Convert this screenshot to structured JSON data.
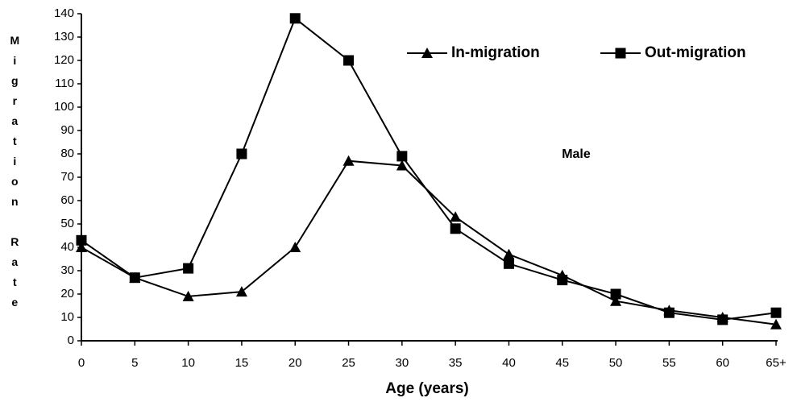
{
  "chart_data": {
    "type": "line",
    "y_label": "Migration Rate",
    "x_label": "Age  (years)",
    "annotation": "Male",
    "categories": [
      "0",
      "5",
      "10",
      "15",
      "20",
      "25",
      "30",
      "35",
      "40",
      "45",
      "50",
      "55",
      "60",
      "65+"
    ],
    "series": [
      {
        "name": "In-migration",
        "marker": "triangle",
        "color": "#000000",
        "values": [
          40,
          27,
          19,
          21,
          40,
          77,
          75,
          53,
          37,
          28,
          17,
          13,
          10,
          7
        ]
      },
      {
        "name": "Out-migration",
        "marker": "square",
        "color": "#000000",
        "values": [
          43,
          27,
          31,
          80,
          138,
          120,
          79,
          48,
          33,
          26,
          20,
          12,
          9,
          12
        ]
      }
    ],
    "ylim": [
      0,
      140
    ],
    "yticks": [
      0,
      10,
      20,
      30,
      40,
      50,
      60,
      70,
      80,
      90,
      100,
      110,
      120,
      130,
      140
    ],
    "legend": "top-right",
    "grid": false
  }
}
